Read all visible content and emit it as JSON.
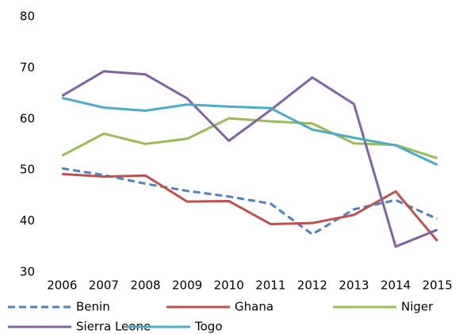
{
  "chart_data": {
    "type": "line",
    "categories": [
      "2006",
      "2007",
      "2008",
      "2009",
      "2010",
      "2011",
      "2012",
      "2013",
      "2014",
      "2015"
    ],
    "series": [
      {
        "name": "Benin",
        "color": "#4f81bd",
        "style": "dashed",
        "values": [
          50.3,
          49,
          47.3,
          45.9,
          44.8,
          43.4,
          37.4,
          42.3,
          44.1,
          40.4
        ]
      },
      {
        "name": "Ghana",
        "color": "#c0504d",
        "style": "solid",
        "values": [
          49.2,
          48.7,
          48.9,
          43.8,
          43.9,
          39.4,
          39.6,
          41.2,
          45.8,
          36.1
        ]
      },
      {
        "name": "Niger",
        "color": "#9bbb59",
        "style": "solid",
        "values": [
          52.8,
          57.1,
          55.1,
          56.1,
          60.1,
          59.5,
          59.1,
          55.2,
          54.9,
          52.3
        ]
      },
      {
        "name": "Sierra Leone",
        "color": "#8064a2",
        "style": "solid",
        "values": [
          64.5,
          69.3,
          68.7,
          64,
          55.7,
          61.7,
          68.1,
          62.9,
          35,
          38.3
        ]
      },
      {
        "name": "Togo",
        "color": "#4bacc6",
        "style": "solid",
        "values": [
          64.1,
          62.2,
          61.6,
          62.8,
          62.4,
          62.1,
          57.9,
          56.3,
          54.8,
          51
        ]
      }
    ],
    "ylim": [
      30,
      80
    ],
    "yticks": [
      30,
      40,
      50,
      60,
      70,
      80
    ],
    "grid": false,
    "legend": "bottom"
  }
}
